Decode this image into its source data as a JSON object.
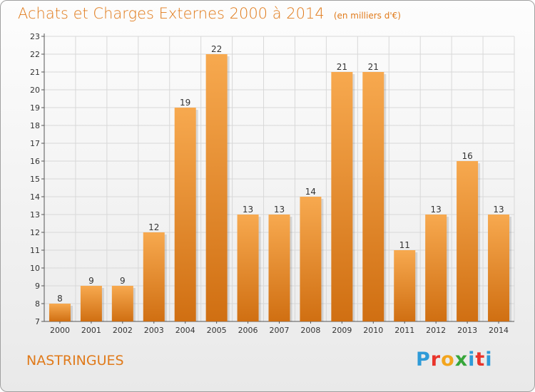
{
  "header": {
    "title": "Achats et Charges Externes 2000 à 2014",
    "unit": "(en milliers d'€)"
  },
  "footer": {
    "commune": "NASTRINGUES",
    "logo": "Proxiti",
    "logo_colors": [
      "#2f9bd8",
      "#e9342b",
      "#f3a51d",
      "#37a63a",
      "#2f9bd8",
      "#e9342b",
      "#2f9bd8"
    ]
  },
  "colors": {
    "accent": "#e07a1a",
    "bar_top": "#f7a94f",
    "bar_bottom": "#d06f12",
    "grid": "#d8d8d8"
  },
  "chart_data": {
    "type": "bar",
    "categories": [
      "2000",
      "2001",
      "2002",
      "2003",
      "2004",
      "2005",
      "2006",
      "2007",
      "2008",
      "2009",
      "2010",
      "2011",
      "2012",
      "2013",
      "2014"
    ],
    "values": [
      8,
      9,
      9,
      12,
      19,
      22,
      13,
      13,
      14,
      21,
      21,
      11,
      13,
      16,
      13
    ],
    "ylim": [
      7,
      23
    ],
    "yticks": [
      7,
      8,
      9,
      10,
      11,
      12,
      13,
      14,
      15,
      16,
      17,
      18,
      19,
      20,
      21,
      22,
      23
    ],
    "title": "Achats et Charges Externes 2000 à 2014",
    "xlabel": "",
    "ylabel": "",
    "grid": true
  }
}
